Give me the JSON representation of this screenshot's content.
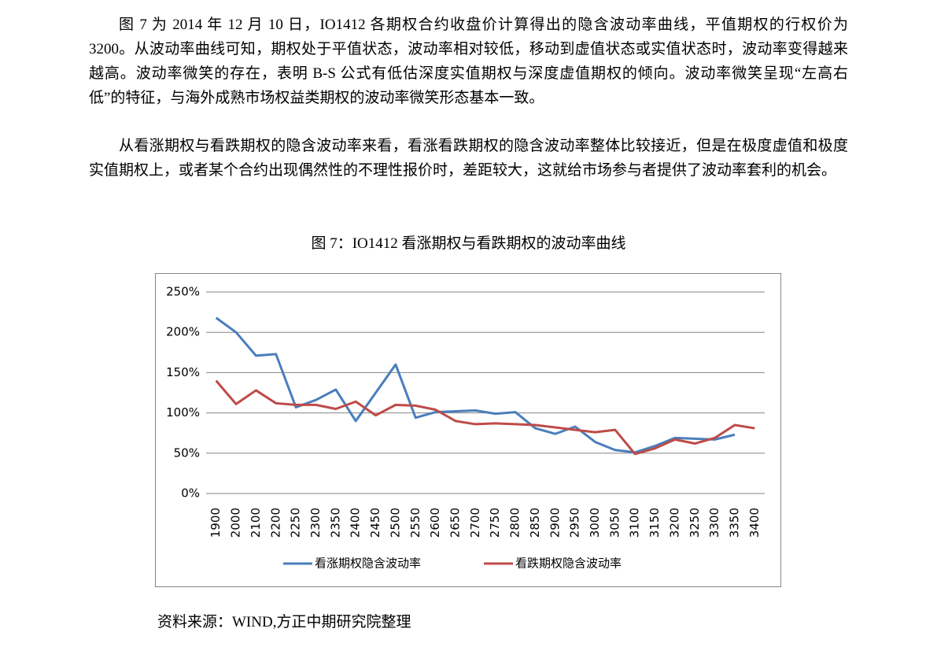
{
  "paragraphs": [
    "图 7 为 2014 年 12 月 10 日，IO1412 各期权合约收盘价计算得出的隐含波动率曲线，平值期权的行权价为 3200。从波动率曲线可知，期权处于平值状态，波动率相对较低，移动到虚值状态或实值状态时，波动率变得越来越高。波动率微笑的存在，表明 B-S 公式有低估深度实值期权与深度虚值期权的倾向。波动率微笑呈现“左高右低”的特征，与海外成熟市场权益类期权的波动率微笑形态基本一致。",
    "从看涨期权与看跌期权的隐含波动率来看，看涨看跌期权的隐含波动率整体比较接近，但是在极度虚值和极度实值期权上，或者某个合约出现偶然性的不理性报价时，差距较大，这就给市场参与者提供了波动率套利的机会。"
  ],
  "figure_caption": "图 7：IO1412 看涨期权与看跌期权的波动率曲线",
  "source": "资料来源：WIND,方正中期研究院整理",
  "chart_data": {
    "type": "line",
    "categories": [
      "1900",
      "2000",
      "2100",
      "2200",
      "2250",
      "2300",
      "2350",
      "2400",
      "2450",
      "2500",
      "2550",
      "2600",
      "2650",
      "2700",
      "2750",
      "2800",
      "2850",
      "2900",
      "2950",
      "3000",
      "3050",
      "3100",
      "3150",
      "3200",
      "3250",
      "3300",
      "3350",
      "3400"
    ],
    "series": [
      {
        "name": "看涨期权隐含波动率",
        "color": "#4a7ebb",
        "values": [
          218,
          200,
          171,
          173,
          107,
          116,
          129,
          90,
          125,
          160,
          94,
          101,
          102,
          103,
          99,
          101,
          81,
          74,
          83,
          64,
          54,
          51,
          59,
          69,
          68,
          67,
          73,
          null
        ]
      },
      {
        "name": "看跌期权隐含波动率",
        "color": "#be4b48",
        "values": [
          140,
          111,
          128,
          112,
          110,
          110,
          105,
          114,
          97,
          110,
          109,
          104,
          90,
          86,
          87,
          86,
          85,
          82,
          79,
          76,
          79,
          49,
          56,
          67,
          62,
          69,
          85,
          81
        ]
      }
    ],
    "ylim": [
      0,
      250
    ],
    "yticks": [
      {
        "value": 0,
        "label": "0%"
      },
      {
        "value": 50,
        "label": "50%"
      },
      {
        "value": 100,
        "label": "100%"
      },
      {
        "value": 150,
        "label": "150%"
      },
      {
        "value": 200,
        "label": "200%"
      },
      {
        "value": 250,
        "label": "250%"
      }
    ],
    "grid": true,
    "legend": "bottom"
  }
}
